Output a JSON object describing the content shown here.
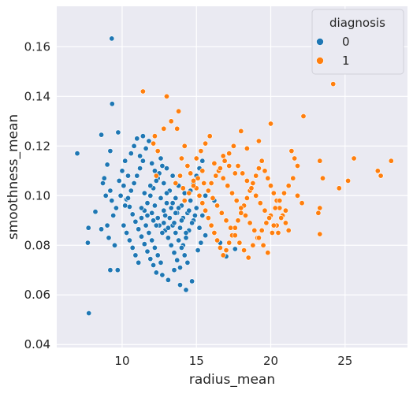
{
  "chart_data": {
    "type": "scatter",
    "title": "",
    "xlabel": "radius_mean",
    "ylabel": "smoothness_mean",
    "xlim": [
      5.6,
      29.2
    ],
    "ylim": [
      0.0388,
      0.1763
    ],
    "x_ticks": [
      10,
      15,
      20,
      25
    ],
    "x_tick_labels": [
      "10",
      "15",
      "20",
      "25"
    ],
    "y_ticks": [
      0.04,
      0.06,
      0.08,
      0.1,
      0.12,
      0.14,
      0.16
    ],
    "y_tick_labels": [
      "0.04",
      "0.06",
      "0.08",
      "0.10",
      "0.12",
      "0.14",
      "0.16"
    ],
    "grid": true,
    "background": "#eaeaf2",
    "legend": {
      "title": "diagnosis",
      "placement": "top-right",
      "entries": [
        {
          "label": "0",
          "color": "#1f77b4"
        },
        {
          "label": "1",
          "color": "#ff7f0e"
        }
      ]
    },
    "series": [
      {
        "name": "0",
        "color": "#1f77b4",
        "points": [
          [
            6.98,
            0.117
          ],
          [
            7.76,
            0.0526
          ],
          [
            7.73,
            0.087
          ],
          [
            7.69,
            0.081
          ],
          [
            8.2,
            0.0935
          ],
          [
            8.6,
            0.0865
          ],
          [
            8.6,
            0.1245
          ],
          [
            9.3,
            0.1633
          ],
          [
            9.33,
            0.137
          ],
          [
            9.73,
            0.1255
          ],
          [
            9.2,
            0.118
          ],
          [
            9.0,
            0.1125
          ],
          [
            8.9,
            0.1
          ],
          [
            8.7,
            0.105
          ],
          [
            8.8,
            0.107
          ],
          [
            9.2,
            0.102
          ],
          [
            9.2,
            0.07
          ],
          [
            9.7,
            0.07
          ],
          [
            9.5,
            0.08
          ],
          [
            9.1,
            0.083
          ],
          [
            9.0,
            0.088
          ],
          [
            9.4,
            0.092
          ],
          [
            9.6,
            0.095
          ],
          [
            9.3,
            0.098
          ],
          [
            9.9,
            0.1
          ],
          [
            10.1,
            0.104
          ],
          [
            10.3,
            0.0985
          ],
          [
            10.5,
            0.0955
          ],
          [
            10.7,
            0.0925
          ],
          [
            10.9,
            0.0895
          ],
          [
            11.1,
            0.0865
          ],
          [
            11.3,
            0.0835
          ],
          [
            11.5,
            0.0805
          ],
          [
            11.7,
            0.0775
          ],
          [
            11.9,
            0.0745
          ],
          [
            12.1,
            0.072
          ],
          [
            12.3,
            0.069
          ],
          [
            12.7,
            0.068
          ],
          [
            13.1,
            0.066
          ],
          [
            13.5,
            0.07
          ],
          [
            13.9,
            0.064
          ],
          [
            14.3,
            0.062
          ],
          [
            14.7,
            0.0655
          ],
          [
            9.8,
            0.106
          ],
          [
            10.0,
            0.11
          ],
          [
            10.2,
            0.114
          ],
          [
            10.4,
            0.108
          ],
          [
            10.6,
            0.117
          ],
          [
            10.8,
            0.12
          ],
          [
            11.0,
            0.123
          ],
          [
            11.2,
            0.116
          ],
          [
            11.4,
            0.124
          ],
          [
            11.6,
            0.119
          ],
          [
            11.8,
            0.122
          ],
          [
            12.0,
            0.113
          ],
          [
            12.2,
            0.11
          ],
          [
            12.4,
            0.107
          ],
          [
            12.6,
            0.115
          ],
          [
            12.8,
            0.105
          ],
          [
            13.0,
            0.111
          ],
          [
            13.2,
            0.102
          ],
          [
            13.4,
            0.108
          ],
          [
            13.6,
            0.099
          ],
          [
            13.8,
            0.104
          ],
          [
            14.0,
            0.096
          ],
          [
            14.2,
            0.101
          ],
          [
            14.4,
            0.093
          ],
          [
            14.6,
            0.098
          ],
          [
            14.8,
            0.09
          ],
          [
            15.0,
            0.095
          ],
          [
            15.2,
            0.087
          ],
          [
            15.4,
            0.092
          ],
          [
            15.6,
            0.084
          ],
          [
            10.1,
            0.088
          ],
          [
            10.3,
            0.085
          ],
          [
            10.5,
            0.082
          ],
          [
            10.7,
            0.079
          ],
          [
            10.9,
            0.076
          ],
          [
            11.1,
            0.073
          ],
          [
            11.3,
            0.091
          ],
          [
            11.5,
            0.094
          ],
          [
            11.7,
            0.097
          ],
          [
            11.9,
            0.1
          ],
          [
            12.1,
            0.103
          ],
          [
            12.3,
            0.106
          ],
          [
            12.5,
            0.109
          ],
          [
            12.7,
            0.112
          ],
          [
            12.9,
            0.086
          ],
          [
            13.1,
            0.083
          ],
          [
            13.3,
            0.08
          ],
          [
            13.5,
            0.077
          ],
          [
            13.7,
            0.074
          ],
          [
            13.9,
            0.071
          ],
          [
            14.1,
            0.08
          ],
          [
            14.3,
            0.083
          ],
          [
            14.5,
            0.086
          ],
          [
            14.7,
            0.089
          ],
          [
            14.9,
            0.092
          ],
          [
            15.1,
            0.078
          ],
          [
            15.3,
            0.081
          ],
          [
            10.2,
            0.096
          ],
          [
            10.4,
            0.099
          ],
          [
            10.6,
            0.102
          ],
          [
            10.8,
            0.105
          ],
          [
            11.0,
            0.108
          ],
          [
            11.2,
            0.111
          ],
          [
            11.4,
            0.114
          ],
          [
            11.6,
            0.088
          ],
          [
            11.8,
            0.085
          ],
          [
            12.0,
            0.082
          ],
          [
            12.2,
            0.079
          ],
          [
            12.4,
            0.076
          ],
          [
            12.6,
            0.073
          ],
          [
            12.8,
            0.094
          ],
          [
            13.0,
            0.097
          ],
          [
            13.2,
            0.091
          ],
          [
            13.4,
            0.088
          ],
          [
            13.6,
            0.085
          ],
          [
            13.8,
            0.082
          ],
          [
            14.0,
            0.079
          ],
          [
            14.2,
            0.076
          ],
          [
            14.4,
            0.073
          ],
          [
            14.6,
            0.102
          ],
          [
            14.8,
            0.105
          ],
          [
            15.0,
            0.108
          ],
          [
            15.2,
            0.111
          ],
          [
            15.4,
            0.114
          ],
          [
            15.6,
            0.1
          ],
          [
            16.2,
            0.098
          ],
          [
            16.6,
            0.081
          ],
          [
            17.0,
            0.0755
          ],
          [
            17.6,
            0.0785
          ],
          [
            11.3,
            0.095
          ],
          [
            11.7,
            0.092
          ],
          [
            12.1,
            0.09
          ],
          [
            12.5,
            0.088
          ],
          [
            12.9,
            0.092
          ],
          [
            13.3,
            0.095
          ],
          [
            13.7,
            0.093
          ],
          [
            14.1,
            0.091
          ],
          [
            14.5,
            0.094
          ],
          [
            12.2,
            0.096
          ],
          [
            12.6,
            0.099
          ],
          [
            13.0,
            0.101
          ],
          [
            13.4,
            0.097
          ],
          [
            13.8,
            0.095
          ],
          [
            11.5,
            0.101
          ],
          [
            11.9,
            0.104
          ],
          [
            12.3,
            0.088
          ],
          [
            12.7,
            0.085
          ],
          [
            13.1,
            0.087
          ],
          [
            13.5,
            0.089
          ],
          [
            13.9,
            0.087
          ],
          [
            14.3,
            0.085
          ],
          [
            12.0,
            0.093
          ],
          [
            12.4,
            0.091
          ],
          [
            12.8,
            0.089
          ],
          [
            13.2,
            0.091
          ],
          [
            13.6,
            0.093
          ],
          [
            14.0,
            0.09
          ]
        ]
      },
      {
        "name": "1",
        "color": "#ff7f0e",
        "points": [
          [
            11.4,
            0.142
          ],
          [
            12.1,
            0.121
          ],
          [
            12.4,
            0.118
          ],
          [
            12.3,
            0.108
          ],
          [
            12.2,
            0.124
          ],
          [
            12.8,
            0.127
          ],
          [
            13.0,
            0.14
          ],
          [
            13.3,
            0.13
          ],
          [
            13.7,
            0.127
          ],
          [
            13.8,
            0.134
          ],
          [
            14.0,
            0.115
          ],
          [
            14.2,
            0.12
          ],
          [
            14.4,
            0.112
          ],
          [
            14.6,
            0.109
          ],
          [
            14.8,
            0.106
          ],
          [
            15.0,
            0.103
          ],
          [
            15.2,
            0.1
          ],
          [
            15.4,
            0.097
          ],
          [
            15.6,
            0.094
          ],
          [
            15.8,
            0.091
          ],
          [
            16.0,
            0.088
          ],
          [
            16.2,
            0.085
          ],
          [
            16.4,
            0.082
          ],
          [
            16.6,
            0.079
          ],
          [
            16.8,
            0.076
          ],
          [
            17.0,
            0.078
          ],
          [
            17.2,
            0.081
          ],
          [
            17.4,
            0.084
          ],
          [
            17.6,
            0.087
          ],
          [
            17.8,
            0.09
          ],
          [
            18.0,
            0.093
          ],
          [
            18.2,
            0.096
          ],
          [
            18.4,
            0.099
          ],
          [
            18.6,
            0.102
          ],
          [
            18.8,
            0.105
          ],
          [
            19.0,
            0.108
          ],
          [
            19.2,
            0.111
          ],
          [
            19.4,
            0.114
          ],
          [
            19.6,
            0.11
          ],
          [
            19.8,
            0.107
          ],
          [
            20.0,
            0.104
          ],
          [
            20.2,
            0.101
          ],
          [
            20.4,
            0.098
          ],
          [
            20.6,
            0.095
          ],
          [
            20.8,
            0.092
          ],
          [
            21.0,
            0.089
          ],
          [
            21.2,
            0.086
          ],
          [
            21.4,
            0.118
          ],
          [
            21.6,
            0.115
          ],
          [
            21.8,
            0.112
          ],
          [
            22.2,
            0.132
          ],
          [
            20.0,
            0.129
          ],
          [
            19.2,
            0.122
          ],
          [
            18.0,
            0.126
          ],
          [
            18.4,
            0.119
          ],
          [
            16.8,
            0.116
          ],
          [
            17.2,
            0.112
          ],
          [
            17.6,
            0.109
          ],
          [
            15.5,
            0.105
          ],
          [
            15.8,
            0.102
          ],
          [
            16.1,
            0.099
          ],
          [
            16.4,
            0.096
          ],
          [
            16.7,
            0.093
          ],
          [
            17.0,
            0.09
          ],
          [
            17.3,
            0.087
          ],
          [
            17.6,
            0.084
          ],
          [
            17.9,
            0.081
          ],
          [
            18.2,
            0.078
          ],
          [
            18.5,
            0.075
          ],
          [
            18.8,
            0.08
          ],
          [
            19.1,
            0.083
          ],
          [
            19.4,
            0.086
          ],
          [
            19.7,
            0.089
          ],
          [
            20.0,
            0.092
          ],
          [
            20.3,
            0.095
          ],
          [
            20.6,
            0.098
          ],
          [
            20.9,
            0.101
          ],
          [
            21.2,
            0.104
          ],
          [
            21.5,
            0.107
          ],
          [
            21.8,
            0.1
          ],
          [
            22.1,
            0.097
          ],
          [
            23.2,
            0.093
          ],
          [
            23.3,
            0.095
          ],
          [
            23.3,
            0.0845
          ],
          [
            23.3,
            0.114
          ],
          [
            23.5,
            0.107
          ],
          [
            24.2,
            0.145
          ],
          [
            24.6,
            0.103
          ],
          [
            25.2,
            0.106
          ],
          [
            25.6,
            0.115
          ],
          [
            27.2,
            0.11
          ],
          [
            27.4,
            0.108
          ],
          [
            28.1,
            0.114
          ],
          [
            15.0,
            0.115
          ],
          [
            15.3,
            0.118
          ],
          [
            15.6,
            0.121
          ],
          [
            15.9,
            0.124
          ],
          [
            16.2,
            0.113
          ],
          [
            16.5,
            0.11
          ],
          [
            16.8,
            0.107
          ],
          [
            17.1,
            0.104
          ],
          [
            17.4,
            0.101
          ],
          [
            17.7,
            0.098
          ],
          [
            18.0,
            0.095
          ],
          [
            18.3,
            0.092
          ],
          [
            18.6,
            0.089
          ],
          [
            18.9,
            0.086
          ],
          [
            19.2,
            0.083
          ],
          [
            19.5,
            0.08
          ],
          [
            19.8,
            0.077
          ],
          [
            20.1,
            0.085
          ],
          [
            20.4,
            0.088
          ],
          [
            20.7,
            0.091
          ],
          [
            21.0,
            0.094
          ],
          [
            14.2,
            0.098
          ],
          [
            14.5,
            0.101
          ],
          [
            14.8,
            0.104
          ],
          [
            15.1,
            0.107
          ],
          [
            15.4,
            0.11
          ],
          [
            13.6,
            0.105
          ],
          [
            13.9,
            0.108
          ],
          [
            14.1,
            0.103
          ],
          [
            16.0,
            0.105
          ],
          [
            16.3,
            0.108
          ],
          [
            16.6,
            0.111
          ],
          [
            16.9,
            0.114
          ],
          [
            17.2,
            0.117
          ],
          [
            17.5,
            0.12
          ],
          [
            17.8,
            0.112
          ],
          [
            18.1,
            0.109
          ],
          [
            18.4,
            0.106
          ],
          [
            18.7,
            0.103
          ],
          [
            19.0,
            0.1
          ],
          [
            19.3,
            0.097
          ],
          [
            19.6,
            0.094
          ],
          [
            19.9,
            0.091
          ],
          [
            20.2,
            0.088
          ],
          [
            20.5,
            0.085
          ]
        ]
      }
    ]
  }
}
